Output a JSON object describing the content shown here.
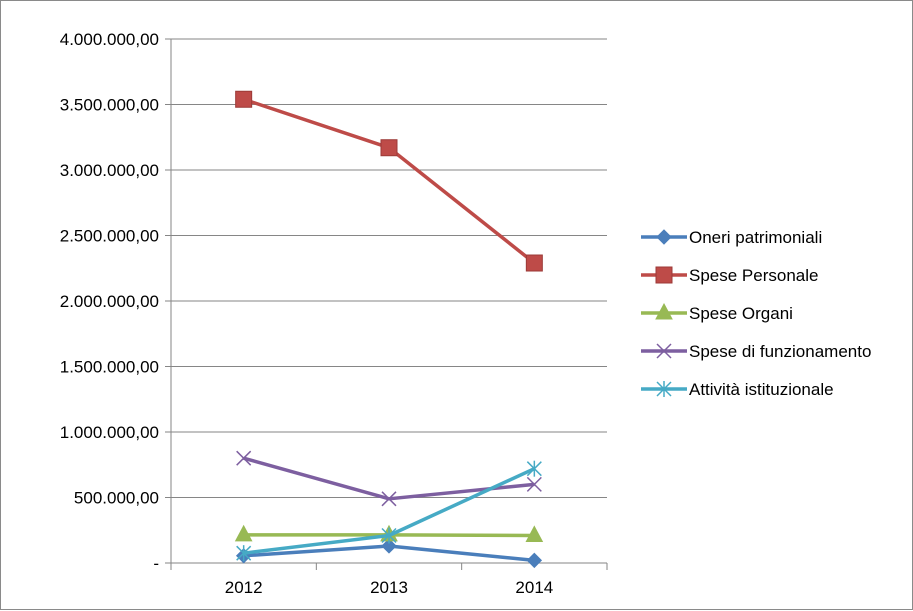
{
  "chart_data": {
    "type": "line",
    "title": "",
    "xlabel": "",
    "ylabel": "",
    "categories": [
      "2012",
      "2013",
      "2014"
    ],
    "ylim": [
      0,
      4000000
    ],
    "yticks": [
      0,
      500000,
      1000000,
      1500000,
      2000000,
      2500000,
      3000000,
      3500000,
      4000000
    ],
    "ytick_labels": [
      "-",
      "500.000,00",
      "1.000.000,00",
      "1.500.000,00",
      "2.000.000,00",
      "2.500.000,00",
      "3.000.000,00",
      "3.500.000,00",
      "4.000.000,00"
    ],
    "grid": true,
    "legend_position": "right",
    "series": [
      {
        "name": "Oneri patrimoniali",
        "values": [
          55000,
          130000,
          20000
        ],
        "color": "#4a7ebb",
        "marker": "diamond"
      },
      {
        "name": "Spese Personale",
        "values": [
          3540000,
          3170000,
          2290000
        ],
        "color": "#be4b48",
        "marker": "square"
      },
      {
        "name": "Spese Organi",
        "values": [
          215000,
          215000,
          210000
        ],
        "color": "#98b954",
        "marker": "triangle"
      },
      {
        "name": "Spese di funzionamento",
        "values": [
          800000,
          490000,
          600000
        ],
        "color": "#7d5fa0",
        "marker": "x"
      },
      {
        "name": "Attività istituzionale",
        "values": [
          75000,
          210000,
          720000
        ],
        "color": "#46aac5",
        "marker": "star"
      }
    ]
  }
}
